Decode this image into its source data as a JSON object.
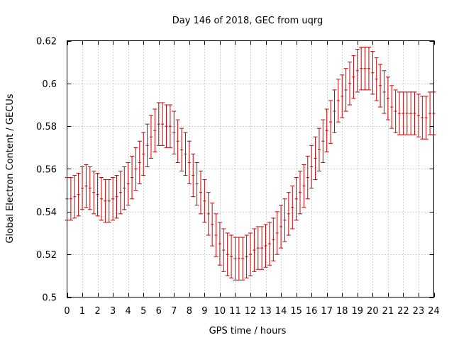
{
  "chart_data": {
    "type": "scatter",
    "title": "Day 146 of 2018, GEC from uqrg",
    "xlabel": "GPS time / hours",
    "ylabel": "Global Electron Content / GECUs",
    "xlim": [
      0,
      24
    ],
    "ylim": [
      0.5,
      0.62
    ],
    "x_ticks": [
      "0",
      "1",
      "2",
      "3",
      "4",
      "5",
      "6",
      "7",
      "8",
      "9",
      "10",
      "11",
      "12",
      "13",
      "14",
      "15",
      "16",
      "17",
      "18",
      "19",
      "20",
      "21",
      "22",
      "23",
      "24"
    ],
    "y_ticks": [
      "0.5",
      "0.52",
      "0.54",
      "0.56",
      "0.58",
      "0.6",
      "0.62"
    ],
    "grid": true,
    "series": [
      {
        "color": "#cc0000",
        "error": 0.01,
        "x": [
          0,
          0.25,
          0.5,
          0.75,
          1,
          1.25,
          1.5,
          1.75,
          2,
          2.25,
          2.5,
          2.75,
          3,
          3.25,
          3.5,
          3.75,
          4,
          4.25,
          4.5,
          4.75,
          5,
          5.25,
          5.5,
          5.75,
          6,
          6.25,
          6.5,
          6.75,
          7,
          7.25,
          7.5,
          7.75,
          8,
          8.25,
          8.5,
          8.75,
          9,
          9.25,
          9.5,
          9.75,
          10,
          10.25,
          10.5,
          10.75,
          11,
          11.25,
          11.5,
          11.75,
          12,
          12.25,
          12.5,
          12.75,
          13,
          13.25,
          13.5,
          13.75,
          14,
          14.25,
          14.5,
          14.75,
          15,
          15.25,
          15.5,
          15.75,
          16,
          16.25,
          16.5,
          16.75,
          17,
          17.25,
          17.5,
          17.75,
          18,
          18.25,
          18.5,
          18.75,
          19,
          19.25,
          19.5,
          19.75,
          20,
          20.25,
          20.5,
          20.75,
          21,
          21.25,
          21.5,
          21.75,
          22,
          22.25,
          22.5,
          22.75,
          23,
          23.25,
          23.5,
          23.75,
          24
        ],
        "y": [
          0.546,
          0.546,
          0.547,
          0.548,
          0.551,
          0.552,
          0.551,
          0.549,
          0.548,
          0.546,
          0.545,
          0.545,
          0.546,
          0.547,
          0.549,
          0.551,
          0.553,
          0.556,
          0.56,
          0.563,
          0.567,
          0.571,
          0.575,
          0.578,
          0.581,
          0.581,
          0.58,
          0.58,
          0.577,
          0.573,
          0.569,
          0.567,
          0.563,
          0.557,
          0.553,
          0.549,
          0.545,
          0.539,
          0.534,
          0.529,
          0.525,
          0.522,
          0.52,
          0.519,
          0.518,
          0.518,
          0.518,
          0.519,
          0.52,
          0.522,
          0.523,
          0.523,
          0.524,
          0.525,
          0.527,
          0.53,
          0.533,
          0.536,
          0.539,
          0.542,
          0.546,
          0.549,
          0.552,
          0.556,
          0.561,
          0.565,
          0.569,
          0.573,
          0.578,
          0.582,
          0.587,
          0.592,
          0.594,
          0.597,
          0.6,
          0.603,
          0.606,
          0.607,
          0.607,
          0.607,
          0.605,
          0.602,
          0.599,
          0.596,
          0.593,
          0.589,
          0.587,
          0.586,
          0.586,
          0.586,
          0.586,
          0.586,
          0.585,
          0.584,
          0.584,
          0.586,
          0.586
        ]
      }
    ]
  }
}
